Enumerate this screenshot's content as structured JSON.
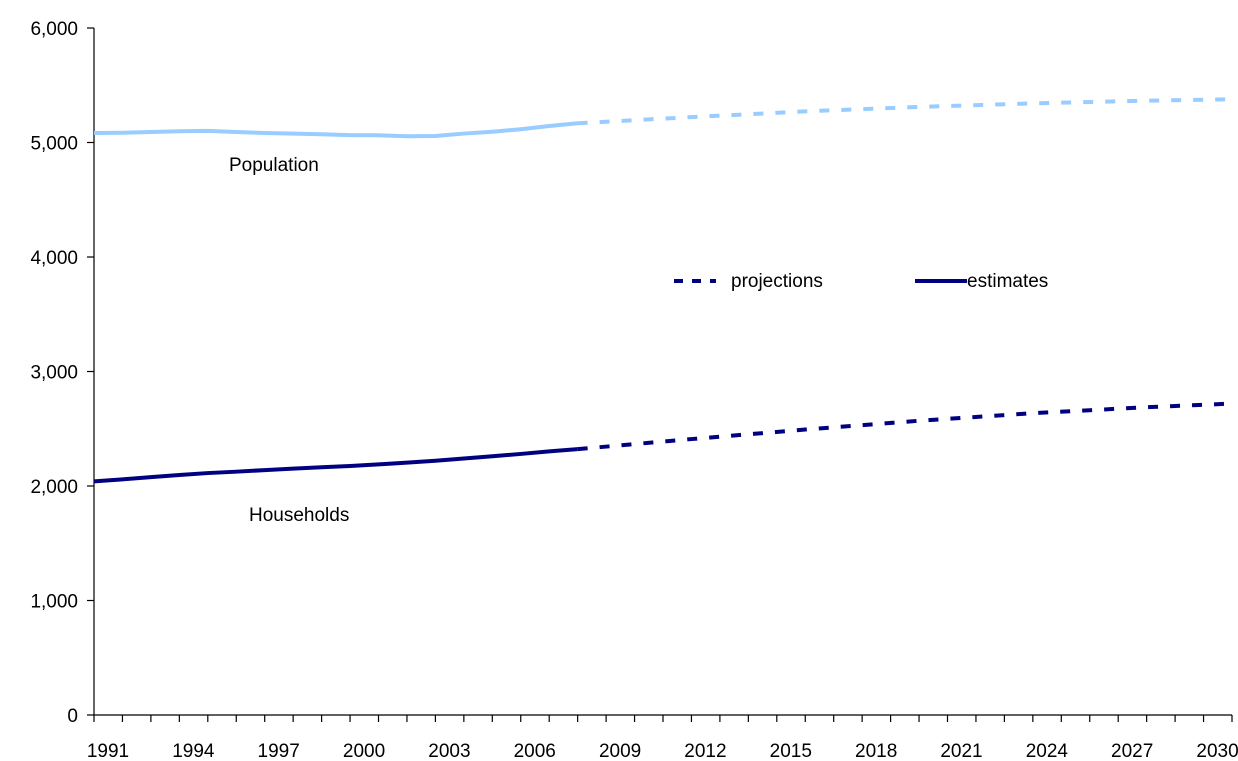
{
  "chart_data": {
    "type": "line",
    "x_min": 1991,
    "x_max": 2031,
    "ylim": [
      0,
      6000
    ],
    "y_ticks": [
      0,
      1000,
      2000,
      3000,
      4000,
      5000,
      6000
    ],
    "y_tick_labels": [
      "0",
      "1,000",
      "2,000",
      "3,000",
      "4,000",
      "5,000",
      "6,000"
    ],
    "x_tick_labels": [
      "1991",
      "1994",
      "1997",
      "2000",
      "2003",
      "2006",
      "2009",
      "2012",
      "2015",
      "2018",
      "2021",
      "2024",
      "2027",
      "2030"
    ],
    "x_tick_values": [
      1991,
      1994,
      1997,
      2000,
      2003,
      2006,
      2009,
      2012,
      2015,
      2018,
      2021,
      2024,
      2027,
      2030
    ],
    "series": [
      {
        "name": "Population",
        "color": "#99ccff",
        "estimates": {
          "x": [
            1991,
            1992,
            1993,
            1994,
            1995,
            1996,
            1997,
            1998,
            1999,
            2000,
            2001,
            2002,
            2003,
            2004,
            2005,
            2006,
            2007,
            2008
          ],
          "y": [
            5083,
            5085,
            5092,
            5098,
            5102,
            5092,
            5083,
            5077,
            5072,
            5064,
            5063,
            5055,
            5057,
            5078,
            5094,
            5116,
            5144,
            5168
          ]
        },
        "projections": {
          "x": [
            2008,
            2012,
            2016,
            2020,
            2024,
            2028,
            2031
          ],
          "y": [
            5168,
            5222,
            5272,
            5311,
            5342,
            5365,
            5378
          ]
        }
      },
      {
        "name": "Households",
        "color": "#000080",
        "estimates": {
          "x": [
            1991,
            1992,
            1993,
            1994,
            1995,
            1996,
            1997,
            1998,
            1999,
            2000,
            2001,
            2002,
            2003,
            2004,
            2005,
            2006,
            2007,
            2008
          ],
          "y": [
            2040,
            2058,
            2078,
            2096,
            2113,
            2125,
            2139,
            2152,
            2164,
            2175,
            2189,
            2204,
            2221,
            2240,
            2260,
            2280,
            2302,
            2322
          ]
        },
        "projections": {
          "x": [
            2008,
            2012,
            2016,
            2020,
            2024,
            2028,
            2031
          ],
          "y": [
            2322,
            2410,
            2493,
            2570,
            2636,
            2688,
            2720
          ]
        }
      }
    ],
    "legend": {
      "placement": "center-right",
      "projections_label": "projections",
      "estimates_label": "estimates",
      "color": "#000080"
    }
  }
}
